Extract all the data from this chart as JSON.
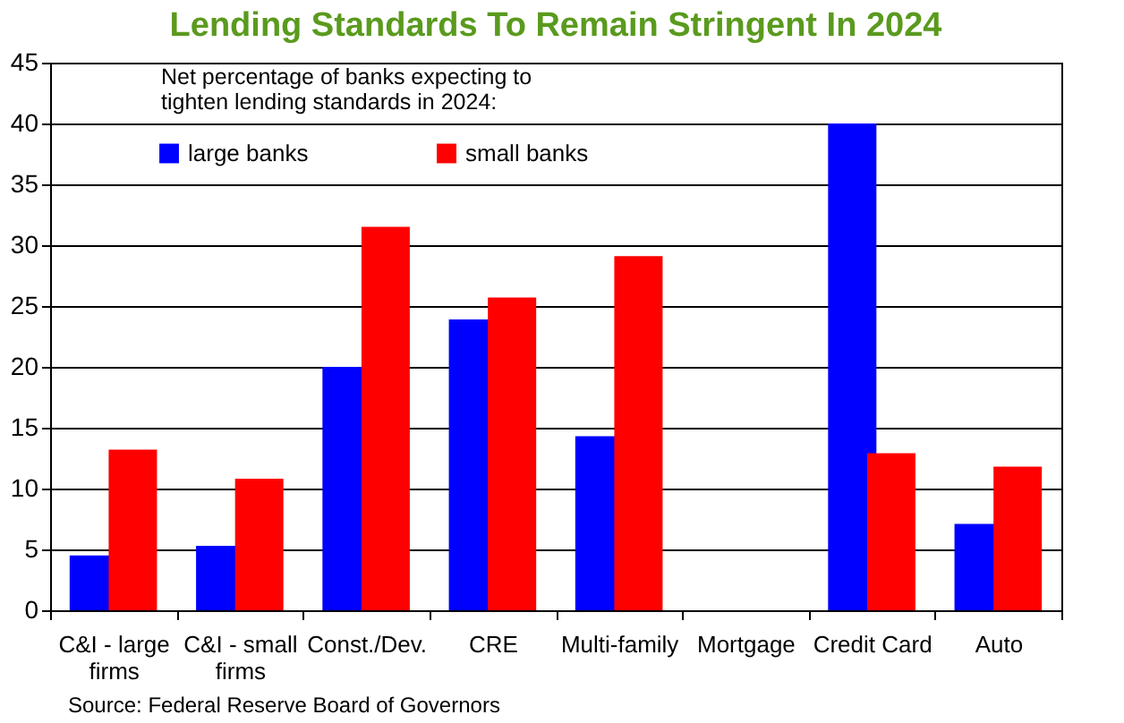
{
  "chart_data": {
    "type": "bar",
    "title": "Lending Standards To Remain Stringent In 2024",
    "categories": [
      "C&I - large\nfirms",
      "C&I - small\nfirms",
      "Const./Dev.",
      "CRE",
      "Multi-family",
      "Mortgage",
      "Credit Card",
      "Auto"
    ],
    "series": [
      {
        "name": "large banks",
        "color": "#0000ff",
        "values": [
          4.5,
          5.3,
          20,
          23.9,
          14.3,
          0,
          40,
          7.1
        ]
      },
      {
        "name": "small banks",
        "color": "#ff0000",
        "values": [
          13.2,
          10.8,
          31.5,
          25.7,
          29.1,
          0,
          12.9,
          11.8
        ]
      }
    ],
    "ylim": [
      0,
      45
    ],
    "yticks": [
      0,
      5,
      10,
      15,
      20,
      25,
      30,
      35,
      40,
      45
    ],
    "grid": "y",
    "legend": "top left",
    "annotations": [
      "Net percentage of banks expecting to\ntighten lending standards in 2024:",
      "Source: Federal Reserve Board of Governors"
    ]
  }
}
